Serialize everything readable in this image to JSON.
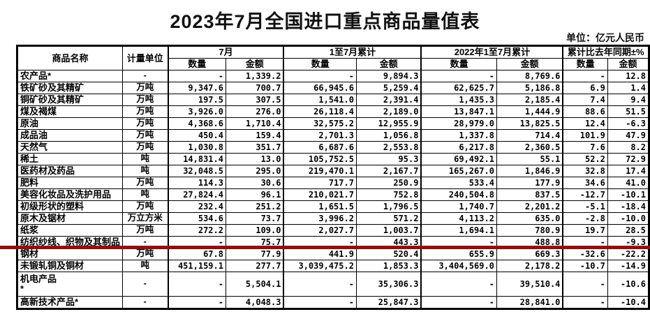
{
  "page": {
    "title": "2023年7月全国进口重点商品量值表",
    "unit_note": "单位：亿元人民币"
  },
  "table": {
    "headers": {
      "commodity": "商品名称",
      "unit": "计量单位",
      "groups": [
        {
          "label": "7月",
          "sub": [
            "数量",
            "金额"
          ]
        },
        {
          "label": "1至7月累计",
          "sub": [
            "数量",
            "金额"
          ]
        },
        {
          "label": "2022年1至7月累计",
          "sub": [
            "数量",
            "金额"
          ]
        },
        {
          "label": "累计比去年同期±%",
          "sub": [
            "数量",
            "金额"
          ]
        }
      ]
    },
    "rows": [
      {
        "name": "农产品*",
        "unit": "-",
        "values": [
          "-",
          "1,339.2",
          "-",
          "9,894.3",
          "-",
          "8,769.6",
          "-",
          "12.8"
        ]
      },
      {
        "name": "铁矿砂及其精矿",
        "unit": "万吨",
        "values": [
          "9,347.6",
          "700.7",
          "66,945.6",
          "5,259.4",
          "62,625.7",
          "5,186.8",
          "6.9",
          "1.4"
        ]
      },
      {
        "name": "铜矿砂及其精矿",
        "unit": "万吨",
        "values": [
          "197.5",
          "307.5",
          "1,541.0",
          "2,391.4",
          "1,435.3",
          "2,185.4",
          "7.4",
          "9.4"
        ]
      },
      {
        "name": "煤及褐煤",
        "unit": "万吨",
        "values": [
          "3,926.0",
          "276.0",
          "26,118.4",
          "2,189.0",
          "13,847.1",
          "1,444.9",
          "88.6",
          "51.5"
        ]
      },
      {
        "name": "原油",
        "unit": "万吨",
        "values": [
          "4,368.6",
          "1,710.4",
          "32,575.2",
          "12,955.9",
          "28,979.0",
          "13,825.5",
          "12.4",
          "-6.3"
        ]
      },
      {
        "name": "成品油",
        "unit": "万吨",
        "values": [
          "450.4",
          "159.4",
          "2,701.3",
          "1,056.8",
          "1,337.8",
          "714.4",
          "101.9",
          "47.9"
        ]
      },
      {
        "name": "天然气",
        "unit": "万吨",
        "values": [
          "1,030.8",
          "351.7",
          "6,687.6",
          "2,553.8",
          "6,217.8",
          "2,360.5",
          "7.6",
          "8.2"
        ]
      },
      {
        "name": "稀土",
        "unit": "吨",
        "values": [
          "14,831.4",
          "13.0",
          "105,752.5",
          "95.3",
          "69,492.1",
          "55.1",
          "52.2",
          "72.9"
        ]
      },
      {
        "name": "医药材及药品",
        "unit": "吨",
        "values": [
          "32,048.5",
          "295.0",
          "219,470.1",
          "2,167.7",
          "165,267.0",
          "1,846.9",
          "32.8",
          "17.4"
        ]
      },
      {
        "name": "肥料",
        "unit": "万吨",
        "values": [
          "114.3",
          "30.6",
          "717.7",
          "250.9",
          "533.4",
          "177.9",
          "34.6",
          "41.0"
        ]
      },
      {
        "name": "美容化妆品及洗护用品",
        "unit": "吨",
        "values": [
          "27,824.4",
          "96.1",
          "210,021.7",
          "752.8",
          "240,504.8",
          "837.5",
          "-12.7",
          "-10.1"
        ]
      },
      {
        "name": "初级形状的塑料",
        "unit": "万吨",
        "values": [
          "232.4",
          "251.2",
          "1,651.5",
          "1,796.5",
          "1,740.7",
          "2,201.2",
          "-5.1",
          "-18.4"
        ]
      },
      {
        "name": "原木及锯材",
        "unit": "万立方米",
        "values": [
          "534.6",
          "73.7",
          "3,996.2",
          "571.2",
          "4,113.2",
          "635.0",
          "-2.8",
          "-10.0"
        ]
      },
      {
        "name": "纸浆",
        "unit": "万吨",
        "values": [
          "272.2",
          "109.0",
          "2,027.7",
          "1,003.7",
          "1,694.1",
          "780.9",
          "19.7",
          "28.5"
        ]
      },
      {
        "name": "纺织纱线、织物及其制品",
        "unit": "-",
        "values": [
          "-",
          "75.7",
          "-",
          "443.3",
          "-",
          "488.8",
          "-",
          "-9.3"
        ]
      },
      {
        "name": "钢材",
        "unit": "万吨",
        "values": [
          "67.8",
          "77.9",
          "441.9",
          "520.4",
          "655.9",
          "669.3",
          "-32.6",
          "-22.2"
        ]
      },
      {
        "name": "未锻轧铜及铜材",
        "unit": "吨",
        "values": [
          "451,159.1",
          "277.7",
          "3,039,475.2",
          "1,853.3",
          "3,404,569.0",
          "2,178.2",
          "-10.7",
          "-14.9"
        ]
      },
      {
        "name": "机电产品",
        "name2": "*",
        "unit": "-",
        "values": [
          "-",
          "5,504.1",
          "-",
          "35,306.3",
          "-",
          "39,510.4",
          "-",
          "-10.6"
        ]
      },
      {
        "name": "高新技术产品*",
        "unit": "-",
        "values": [
          "-",
          "4,048.3",
          "-",
          "25,847.3",
          "-",
          "28,841.0",
          "-",
          "-10.4"
        ]
      }
    ]
  },
  "annotations": {
    "red_underline": {
      "marked_row": "纺织纱线、织物及其制品",
      "color": "#8e1010"
    }
  }
}
